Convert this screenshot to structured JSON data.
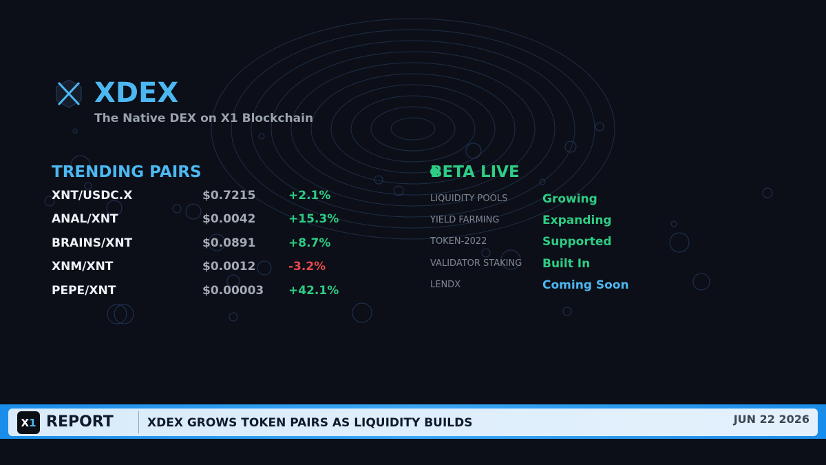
{
  "brand": {
    "name": "XDEX",
    "tagline": "The Native DEX on X1 Blockchain",
    "logo_icon": "x-hexagon-icon",
    "accent_color": "#4cb8f2"
  },
  "trending": {
    "title": "TRENDING PAIRS",
    "pairs": [
      {
        "pair": "XNT/USDC.X",
        "price": "$0.7215",
        "change": "+2.1%",
        "direction": "up"
      },
      {
        "pair": "ANAL/XNT",
        "price": "$0.0042",
        "change": "+15.3%",
        "direction": "up"
      },
      {
        "pair": "BRAINS/XNT",
        "price": "$0.0891",
        "change": "+8.7%",
        "direction": "up"
      },
      {
        "pair": "XNM/XNT",
        "price": "$0.0012",
        "change": "-3.2%",
        "direction": "down"
      },
      {
        "pair": "PEPE/XNT",
        "price": "$0.00003",
        "change": "+42.1%",
        "direction": "up"
      }
    ]
  },
  "beta": {
    "title": "BETA LIVE",
    "status_color": "#2ecc85",
    "features": [
      {
        "label": "LIQUIDITY POOLS",
        "status": "Growing",
        "color": "#2ecc85"
      },
      {
        "label": "YIELD FARMING",
        "status": "Expanding",
        "color": "#2ecc85"
      },
      {
        "label": "TOKEN-2022",
        "status": "Supported",
        "color": "#2ecc85"
      },
      {
        "label": "VALIDATOR STAKING",
        "status": "Built In",
        "color": "#2ecc85"
      },
      {
        "label": "LENDX",
        "status": "Coming Soon",
        "color": "#4cb8f2"
      }
    ]
  },
  "ticker": {
    "badge_x": "X",
    "badge_one": "1",
    "label": "REPORT",
    "headline": "XDEX GROWS TOKEN PAIRS AS LIQUIDITY BUILDS",
    "date": "JUN 22 2026"
  },
  "colors": {
    "background": "#0c0f17",
    "positive": "#2ecc85",
    "negative": "#e8484f",
    "ticker_bar": "#1a8dea"
  }
}
